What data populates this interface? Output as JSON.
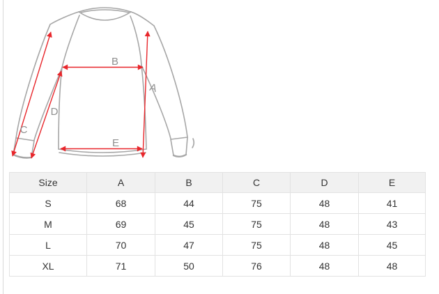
{
  "page": {
    "background": "#ffffff",
    "left_edge_color": "#d9d9d9"
  },
  "diagram": {
    "type": "garment-measurement-diagram",
    "garment": "long-sleeve raglan sweatshirt outline",
    "colors": {
      "outline": "#a6a6a6",
      "arrow": "#e8262b",
      "label": "#8f8f8f"
    },
    "labels": {
      "a": "A",
      "b": "B",
      "c": "C",
      "d": "D",
      "e": "E"
    }
  },
  "size_table": {
    "columns": [
      "Size",
      "A",
      "B",
      "C",
      "D",
      "E"
    ],
    "rows": [
      {
        "size": "S",
        "values": [
          "68",
          "44",
          "75",
          "48",
          "41"
        ]
      },
      {
        "size": "M",
        "values": [
          "69",
          "45",
          "75",
          "48",
          "43"
        ]
      },
      {
        "size": "L",
        "values": [
          "70",
          "47",
          "75",
          "48",
          "45"
        ]
      },
      {
        "size": "XL",
        "values": [
          "71",
          "50",
          "76",
          "48",
          "48"
        ]
      }
    ],
    "colors": {
      "header_bg": "#f1f1f1",
      "border": "#e2e2e2",
      "text": "#333333"
    }
  }
}
